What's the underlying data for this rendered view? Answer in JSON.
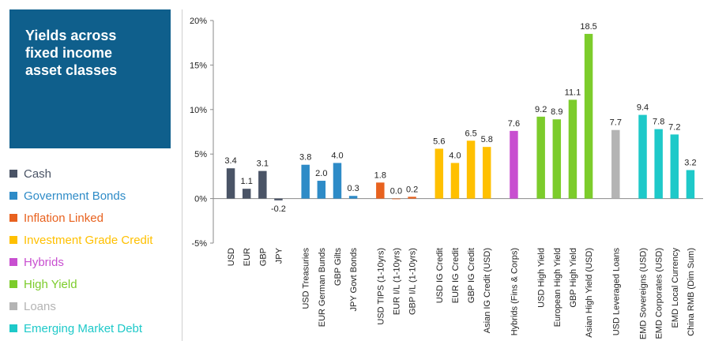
{
  "title": [
    "Yields across",
    "fixed income",
    "asset classes"
  ],
  "legend": [
    {
      "label": "Cash",
      "color": "#4a5466"
    },
    {
      "label": "Government Bonds",
      "color": "#2e8bc7"
    },
    {
      "label": "Inflation Linked",
      "color": "#e8621f"
    },
    {
      "label": "Investment Grade Credit",
      "color": "#ffc000"
    },
    {
      "label": "Hybrids",
      "color": "#c84fd0"
    },
    {
      "label": "High Yield",
      "color": "#7ccc2b"
    },
    {
      "label": "Loans",
      "color": "#b4b4b4"
    },
    {
      "label": "Emerging Market Debt",
      "color": "#1ec9c9"
    }
  ],
  "chart_data": {
    "type": "bar",
    "ylim": [
      -5,
      20
    ],
    "yticks": [
      "-5%",
      "0%",
      "5%",
      "10%",
      "15%",
      "20%"
    ],
    "groups": [
      {
        "name": "Cash",
        "color": "#4a5466",
        "bars": [
          {
            "label": "USD",
            "value": 3.4,
            "text": "3.4"
          },
          {
            "label": "EUR",
            "value": 1.1,
            "text": "1.1"
          },
          {
            "label": "GBP",
            "value": 3.1,
            "text": "3.1"
          },
          {
            "label": "JPY",
            "value": -0.2,
            "text": "-0.2"
          }
        ]
      },
      {
        "name": "Government Bonds",
        "color": "#2e8bc7",
        "bars": [
          {
            "label": "USD Treasuries",
            "value": 3.8,
            "text": "3.8"
          },
          {
            "label": "EUR German Bunds",
            "value": 2.0,
            "text": "2.0"
          },
          {
            "label": "GBP Gilts",
            "value": 4.0,
            "text": "4.0"
          },
          {
            "label": "JPY Govt Bonds",
            "value": 0.3,
            "text": "0.3"
          }
        ]
      },
      {
        "name": "Inflation Linked",
        "color": "#e8621f",
        "bars": [
          {
            "label": "USD TIPS (1-10yrs)",
            "value": 1.8,
            "text": "1.8"
          },
          {
            "label": "EUR I/L (1-10yrs)",
            "value": 0.0,
            "text": "0.0"
          },
          {
            "label": "GBP I/L (1-10yrs)",
            "value": 0.2,
            "text": "0.2"
          }
        ]
      },
      {
        "name": "Investment Grade Credit",
        "color": "#ffc000",
        "bars": [
          {
            "label": "USD IG Credit",
            "value": 5.6,
            "text": "5.6"
          },
          {
            "label": "EUR IG Credit",
            "value": 4.0,
            "text": "4.0"
          },
          {
            "label": "GBP IG Credit",
            "value": 6.5,
            "text": "6.5"
          },
          {
            "label": "Asian IG Credit (USD)",
            "value": 5.8,
            "text": "5.8"
          }
        ]
      },
      {
        "name": "Hybrids",
        "color": "#c84fd0",
        "bars": [
          {
            "label": "Hybrids (Fins & Corps)",
            "value": 7.6,
            "text": "7.6"
          }
        ]
      },
      {
        "name": "High Yield",
        "color": "#7ccc2b",
        "bars": [
          {
            "label": "USD High Yield",
            "value": 9.2,
            "text": "9.2"
          },
          {
            "label": "European High Yield",
            "value": 8.9,
            "text": "8.9"
          },
          {
            "label": "GBP High Yield",
            "value": 11.1,
            "text": "11.1"
          },
          {
            "label": "Asian High Yield (USD)",
            "value": 18.5,
            "text": "18.5"
          }
        ]
      },
      {
        "name": "Loans",
        "color": "#b4b4b4",
        "bars": [
          {
            "label": "USD Leveraged Loans",
            "value": 7.7,
            "text": "7.7"
          }
        ]
      },
      {
        "name": "Emerging Market Debt",
        "color": "#1ec9c9",
        "bars": [
          {
            "label": "EMD Sovereigns (USD)",
            "value": 9.4,
            "text": "9.4"
          },
          {
            "label": "EMD Corporates (USD)",
            "value": 7.8,
            "text": "7.8"
          },
          {
            "label": "EMD Local Currency",
            "value": 7.2,
            "text": "7.2"
          },
          {
            "label": "China RMB (Dim Sum)",
            "value": 3.2,
            "text": "3.2"
          }
        ]
      }
    ]
  }
}
